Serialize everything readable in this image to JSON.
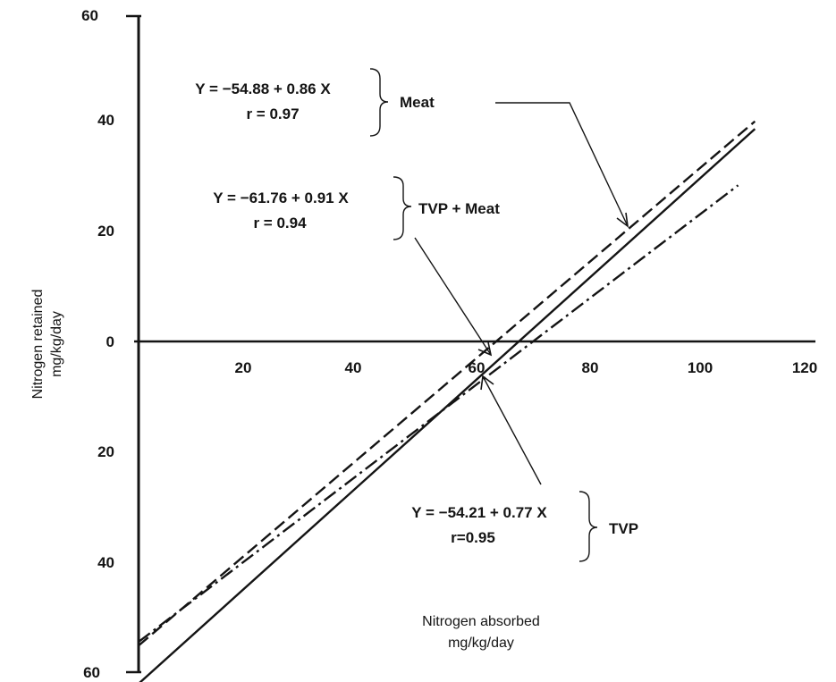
{
  "chart_data": {
    "type": "line",
    "xlabel": [
      "Nitrogen absorbed",
      "mg/kg/day"
    ],
    "ylabel": [
      "Nitrogen retained",
      "mg/kg/day"
    ],
    "xlim": [
      0,
      120
    ],
    "ylim": [
      -60,
      60
    ],
    "x_ticks": [
      "20",
      "40",
      "60",
      "80",
      "100",
      "120"
    ],
    "y_ticks": [
      "60",
      "40",
      "20",
      "0",
      "20",
      "40",
      "60"
    ],
    "grid": false,
    "legend": "none",
    "series": [
      {
        "name": "Meat",
        "intercept": -54.88,
        "slope": 0.86,
        "x_range": [
          0,
          110
        ],
        "style": "dashed",
        "equation": "Y = −54.88 + 0.86 X",
        "r_text": "r = 0.97"
      },
      {
        "name": "TVP + Meat",
        "intercept": -61.76,
        "slope": 0.91,
        "x_range": [
          0,
          110
        ],
        "style": "solid",
        "equation": "Y = −61.76 + 0.91 X",
        "r_text": "r = 0.94"
      },
      {
        "name": "TVP",
        "intercept": -54.21,
        "slope": 0.77,
        "x_range": [
          0,
          107
        ],
        "style": "dash-dot",
        "equation": "Y = −54.21 + 0.77 X",
        "r_text": "r=0.95"
      }
    ]
  }
}
